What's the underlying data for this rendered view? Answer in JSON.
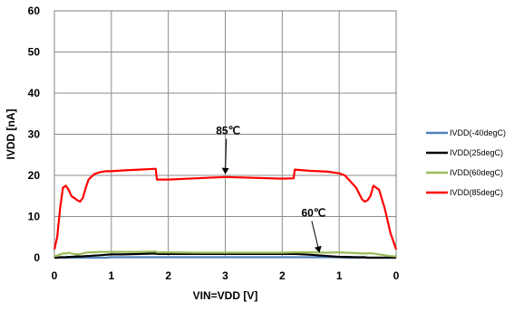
{
  "chart_data": {
    "type": "line",
    "title": "",
    "xlabel": "VIN=VDD [V]",
    "ylabel": "IVDD [nA]",
    "ylim": [
      0,
      60
    ],
    "yticks": [
      "0",
      "10",
      "20",
      "30",
      "40",
      "50",
      "60"
    ],
    "xlim": [
      0,
      6
    ],
    "xticks": [
      "0",
      "1",
      "2",
      "3",
      "2",
      "1",
      "0"
    ],
    "grid": true,
    "legend_position": "right",
    "x": [
      0,
      0.05,
      0.1,
      0.15,
      0.2,
      0.25,
      0.3,
      0.4,
      0.45,
      0.5,
      0.55,
      0.6,
      0.7,
      0.8,
      0.9,
      1.0,
      1.2,
      1.5,
      1.78,
      1.8,
      2.0,
      2.5,
      3.0,
      3.5,
      4.0,
      4.2,
      4.22,
      4.5,
      4.8,
      5.0,
      5.1,
      5.3,
      5.4,
      5.45,
      5.5,
      5.55,
      5.6,
      5.7,
      5.8,
      5.9,
      6.0
    ],
    "series": [
      {
        "name": "IVDD(-40degC)",
        "color": "#4f81bd",
        "values": [
          0,
          0,
          0,
          0,
          0,
          0,
          0,
          0,
          0,
          0,
          0,
          0,
          0,
          0,
          0,
          0.1,
          0.1,
          0.1,
          0.1,
          0.1,
          0.1,
          0.1,
          0.1,
          0.1,
          0.1,
          0.1,
          0.1,
          0.1,
          0.1,
          0.1,
          0,
          0,
          0,
          0,
          0,
          0,
          0,
          0,
          0,
          0,
          0
        ]
      },
      {
        "name": "IVDD(25degC)",
        "color": "#000000",
        "values": [
          0,
          0,
          0.1,
          0.1,
          0.1,
          0.2,
          0.2,
          0.3,
          0.3,
          0.3,
          0.4,
          0.4,
          0.5,
          0.6,
          0.7,
          0.8,
          0.8,
          0.9,
          1.0,
          0.9,
          0.9,
          0.9,
          0.9,
          0.9,
          0.9,
          0.9,
          0.9,
          0.7,
          0.4,
          0.2,
          0.2,
          0.1,
          0.1,
          0.1,
          0,
          0,
          0,
          0,
          0,
          0,
          0
        ]
      },
      {
        "name": "IVDD(60degC)",
        "color": "#9bbb59",
        "values": [
          0.3,
          0.5,
          0.8,
          1.0,
          1.0,
          1.2,
          1.0,
          0.8,
          0.9,
          1.0,
          1.2,
          1.3,
          1.3,
          1.4,
          1.4,
          1.4,
          1.4,
          1.4,
          1.5,
          1.3,
          1.3,
          1.2,
          1.2,
          1.2,
          1.2,
          1.3,
          1.3,
          1.3,
          1.2,
          1.3,
          1.2,
          1.1,
          1.0,
          1.0,
          1.0,
          1.1,
          1.0,
          0.8,
          0.6,
          0.4,
          0.3
        ]
      },
      {
        "name": "IVDD(85degC)",
        "color": "#ff0000",
        "values": [
          2.0,
          5.0,
          12.0,
          17.0,
          17.5,
          16.5,
          15.0,
          14.0,
          13.6,
          14.5,
          17.0,
          19.0,
          20.3,
          20.8,
          21.0,
          21.0,
          21.2,
          21.4,
          21.6,
          19.0,
          19.0,
          19.3,
          19.6,
          19.4,
          19.2,
          19.3,
          21.4,
          21.1,
          20.9,
          20.5,
          20.0,
          17.0,
          14.2,
          13.6,
          14.0,
          15.0,
          17.5,
          16.5,
          12.0,
          6.0,
          2.0
        ]
      }
    ],
    "annotations": [
      {
        "text": "85℃",
        "x": 3.05,
        "y": 30,
        "arrow_to": [
          3.0,
          20.5
        ]
      },
      {
        "text": "60℃",
        "x": 4.55,
        "y": 10,
        "arrow_to": [
          4.65,
          1.4
        ]
      }
    ]
  }
}
